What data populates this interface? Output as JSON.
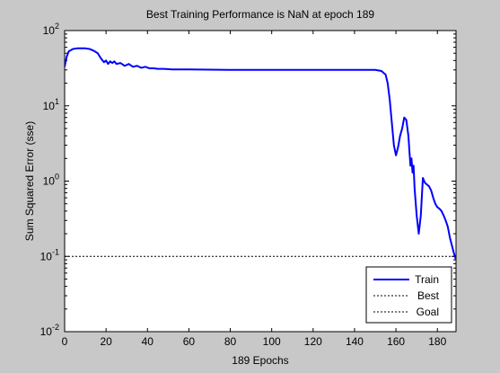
{
  "chart_data": {
    "type": "line",
    "title": "Best Training Performance is NaN at epoch 189",
    "xlabel": "189 Epochs",
    "ylabel": "Sum Squared Error  (sse)",
    "xlim": [
      0,
      189
    ],
    "ylim": [
      0.01,
      100
    ],
    "yscale": "log",
    "x_ticks": [
      0,
      20,
      40,
      60,
      80,
      100,
      120,
      140,
      160,
      180
    ],
    "y_ticks": [
      {
        "value": 0.01,
        "base": "10",
        "exp": "-2"
      },
      {
        "value": 0.1,
        "base": "10",
        "exp": "-1"
      },
      {
        "value": 1,
        "base": "10",
        "exp": "0"
      },
      {
        "value": 10,
        "base": "10",
        "exp": "1"
      },
      {
        "value": 100,
        "base": "10",
        "exp": "2"
      }
    ],
    "grid": false,
    "legend_position": "bottom-right",
    "series": [
      {
        "name": "Train",
        "color": "#0000ff",
        "style": "solid",
        "points": [
          [
            0,
            33
          ],
          [
            1,
            45
          ],
          [
            2,
            53
          ],
          [
            4,
            57
          ],
          [
            6,
            58
          ],
          [
            8,
            58
          ],
          [
            10,
            58
          ],
          [
            12,
            57
          ],
          [
            14,
            54
          ],
          [
            16,
            50
          ],
          [
            17,
            45
          ],
          [
            18,
            41
          ],
          [
            19,
            38
          ],
          [
            20,
            40
          ],
          [
            21,
            36
          ],
          [
            22,
            39
          ],
          [
            23,
            37
          ],
          [
            24,
            39
          ],
          [
            25,
            36
          ],
          [
            27,
            37
          ],
          [
            29,
            34
          ],
          [
            31,
            36
          ],
          [
            33,
            33
          ],
          [
            35,
            34
          ],
          [
            37,
            32
          ],
          [
            39,
            33
          ],
          [
            41,
            31.5
          ],
          [
            43,
            31.5
          ],
          [
            45,
            31
          ],
          [
            48,
            31
          ],
          [
            52,
            30.5
          ],
          [
            60,
            30.5
          ],
          [
            80,
            30
          ],
          [
            100,
            30
          ],
          [
            120,
            30
          ],
          [
            140,
            30
          ],
          [
            150,
            30
          ],
          [
            153,
            29
          ],
          [
            155,
            26
          ],
          [
            156,
            20
          ],
          [
            157,
            12
          ],
          [
            158,
            6
          ],
          [
            159,
            3
          ],
          [
            160,
            2.2
          ],
          [
            161,
            2.8
          ],
          [
            162,
            4
          ],
          [
            163,
            5
          ],
          [
            164,
            7
          ],
          [
            165,
            6.5
          ],
          [
            166,
            4
          ],
          [
            166.5,
            2.5
          ],
          [
            167,
            1.6
          ],
          [
            167.5,
            2
          ],
          [
            168,
            1.3
          ],
          [
            168.5,
            1.6
          ],
          [
            169,
            0.8
          ],
          [
            170,
            0.35
          ],
          [
            171,
            0.2
          ],
          [
            172,
            0.35
          ],
          [
            173,
            1.1
          ],
          [
            174,
            0.95
          ],
          [
            175,
            0.9
          ],
          [
            176,
            0.85
          ],
          [
            177,
            0.75
          ],
          [
            178,
            0.6
          ],
          [
            179,
            0.5
          ],
          [
            180,
            0.45
          ],
          [
            181,
            0.43
          ],
          [
            182,
            0.4
          ],
          [
            183,
            0.35
          ],
          [
            184,
            0.3
          ],
          [
            185,
            0.25
          ],
          [
            186,
            0.18
          ],
          [
            187,
            0.14
          ],
          [
            188,
            0.11
          ],
          [
            189,
            0.09
          ]
        ]
      },
      {
        "name": "Best",
        "color": "#000000",
        "style": "dotted",
        "points": []
      },
      {
        "name": "Goal",
        "color": "#000000",
        "style": "dotted",
        "value": 0.1
      }
    ]
  }
}
